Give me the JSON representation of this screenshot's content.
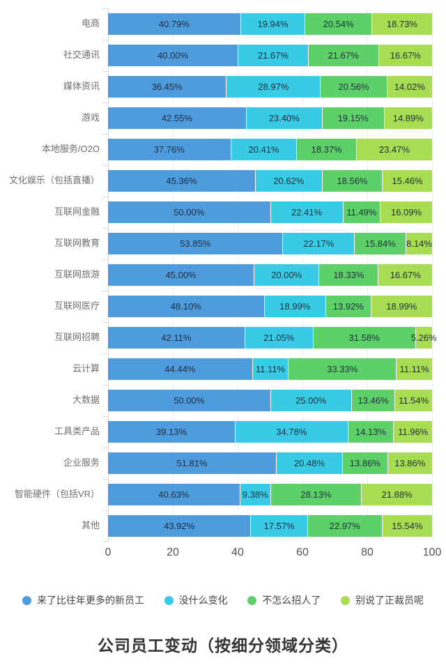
{
  "chart_data": {
    "type": "bar",
    "orientation": "horizontal-stacked",
    "title": "公司员工变动（按细分领域分类）",
    "categories": [
      "电商",
      "社交通讯",
      "媒体资讯",
      "游戏",
      "本地服务/O2O",
      "文化娱乐（包括直播）",
      "互联网金融",
      "互联网教育",
      "互联网旅游",
      "互联网医疗",
      "互联网招聘",
      "云计算",
      "大数据",
      "工具类产品",
      "企业服务",
      "智能硬件（包括VR）",
      "其他"
    ],
    "series": [
      {
        "name": "来了比往年更多的新员工",
        "color": "#4E9BDD",
        "values": [
          40.79,
          40.0,
          36.45,
          42.55,
          37.76,
          45.36,
          50.0,
          53.85,
          45.0,
          48.1,
          42.11,
          44.44,
          50.0,
          39.13,
          51.81,
          40.63,
          43.92
        ]
      },
      {
        "name": "没什么变化",
        "color": "#38CBE5",
        "values": [
          19.94,
          21.67,
          28.97,
          23.4,
          20.41,
          20.62,
          22.41,
          22.17,
          20.0,
          18.99,
          21.05,
          11.11,
          25.0,
          34.78,
          20.48,
          9.38,
          17.57
        ]
      },
      {
        "name": "不怎么招人了",
        "color": "#5DD168",
        "values": [
          20.54,
          21.67,
          20.56,
          19.15,
          18.37,
          18.56,
          11.49,
          15.84,
          18.33,
          13.92,
          31.58,
          33.33,
          13.46,
          14.13,
          13.86,
          28.13,
          22.97
        ]
      },
      {
        "name": "别说了正裁员呢",
        "color": "#A8DD52",
        "values": [
          18.73,
          16.67,
          14.02,
          14.89,
          23.47,
          15.46,
          16.09,
          8.14,
          16.67,
          18.99,
          5.26,
          11.11,
          11.54,
          11.96,
          13.86,
          21.88,
          15.54
        ]
      }
    ],
    "x_ticks": [
      0,
      20,
      40,
      60,
      80,
      100
    ],
    "xlim": [
      0,
      100
    ],
    "value_suffix": "%",
    "grid": true,
    "legend_position": "bottom"
  }
}
